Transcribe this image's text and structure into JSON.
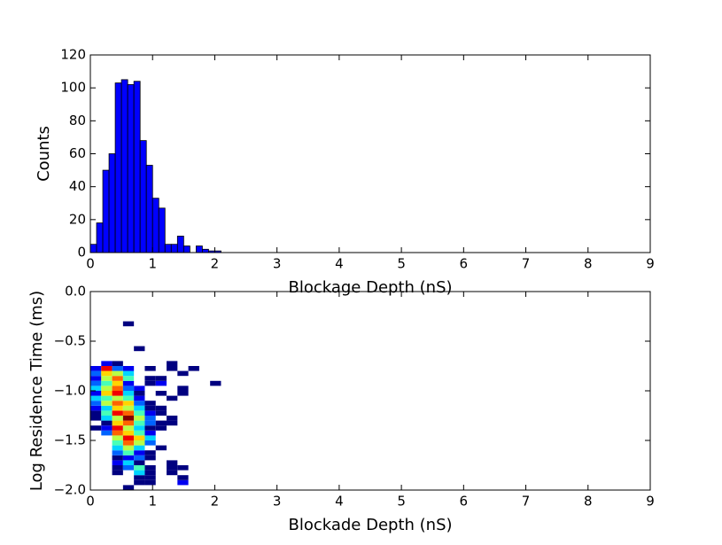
{
  "chart_data": [
    {
      "type": "histogram",
      "xlabel": "Blockage Depth (nS)",
      "ylabel": "Counts",
      "bins": [
        0,
        0.1,
        0.2,
        0.3,
        0.4,
        0.5,
        0.6,
        0.7,
        0.8,
        0.9,
        1.0,
        1.1,
        1.2,
        1.3,
        1.4,
        1.5,
        1.6,
        1.7,
        1.8,
        1.9,
        2.0,
        2.1
      ],
      "values": [
        5,
        18,
        50,
        60,
        103,
        105,
        102,
        104,
        68,
        53,
        33,
        27,
        5,
        5,
        10,
        4,
        0,
        4,
        2,
        1,
        1
      ],
      "color": "#0000ff",
      "xlim": [
        0,
        9
      ],
      "xticks": [
        0,
        1,
        2,
        3,
        4,
        5,
        6,
        7,
        8,
        9
      ],
      "ylim": [
        0,
        120
      ],
      "yticks": [
        0,
        20,
        40,
        60,
        80,
        100,
        120
      ]
    },
    {
      "type": "hist2d",
      "xlabel": "Blockade Depth (nS)",
      "ylabel": "Log Residence Time (ms)",
      "colormap": "jet",
      "xbins": [
        0,
        0.175,
        0.35,
        0.525,
        0.7,
        0.875,
        1.05,
        1.225,
        1.4,
        1.575,
        1.75,
        1.925,
        2.1
      ],
      "ybins": [
        -2.0,
        -1.95,
        -1.9,
        -1.85,
        -1.8,
        -1.75,
        -1.7,
        -1.65,
        -1.6,
        -1.55,
        -1.5,
        -1.45,
        -1.4,
        -1.35,
        -1.3,
        -1.25,
        -1.2,
        -1.15,
        -1.1,
        -1.05,
        -1.0,
        -0.95,
        -0.9,
        -0.85,
        -0.8,
        -0.75,
        -0.7,
        -0.65,
        -0.6,
        -0.55,
        -0.5,
        -0.45,
        -0.4,
        -0.35,
        -0.3
      ],
      "counts": [
        [
          0,
          0,
          0,
          1,
          0,
          0,
          0,
          0,
          0,
          0,
          0,
          0
        ],
        [
          0,
          0,
          0,
          0,
          1,
          1,
          0,
          0,
          2,
          0,
          0,
          0
        ],
        [
          0,
          0,
          0,
          0,
          1,
          1,
          0,
          0,
          1,
          0,
          0,
          0
        ],
        [
          0,
          0,
          1,
          0,
          4,
          1,
          0,
          1,
          0,
          0,
          0,
          0
        ],
        [
          0,
          0,
          1,
          3,
          5,
          1,
          0,
          1,
          1,
          0,
          0,
          0
        ],
        [
          0,
          0,
          2,
          4,
          1,
          0,
          0,
          1,
          0,
          0,
          0,
          0
        ],
        [
          0,
          0,
          1,
          2,
          3,
          1,
          0,
          0,
          0,
          0,
          0,
          0
        ],
        [
          0,
          0,
          3,
          5,
          2,
          1,
          0,
          0,
          0,
          0,
          0,
          0
        ],
        [
          0,
          0,
          4,
          6,
          4,
          0,
          1,
          0,
          0,
          0,
          0,
          0
        ],
        [
          0,
          0,
          5,
          8,
          6,
          3,
          0,
          0,
          0,
          0,
          0,
          0
        ],
        [
          0,
          0,
          6,
          9,
          7,
          4,
          0,
          0,
          0,
          0,
          0,
          0
        ],
        [
          0,
          3,
          8,
          7,
          5,
          2,
          0,
          0,
          0,
          0,
          0,
          0
        ],
        [
          1,
          2,
          9,
          6,
          4,
          1,
          1,
          0,
          0,
          0,
          0,
          0
        ],
        [
          0,
          1,
          7,
          8,
          5,
          3,
          1,
          1,
          0,
          0,
          0,
          0
        ],
        [
          1,
          4,
          6,
          10,
          6,
          3,
          0,
          1,
          0,
          0,
          0,
          0
        ],
        [
          1,
          5,
          9,
          8,
          5,
          2,
          1,
          0,
          0,
          0,
          0,
          0
        ],
        [
          2,
          4,
          7,
          6,
          4,
          1,
          1,
          0,
          0,
          0,
          0,
          0
        ],
        [
          3,
          6,
          8,
          7,
          3,
          1,
          0,
          0,
          0,
          0,
          0,
          0
        ],
        [
          4,
          5,
          6,
          5,
          2,
          0,
          0,
          1,
          0,
          0,
          0,
          0
        ],
        [
          2,
          7,
          9,
          4,
          1,
          0,
          1,
          0,
          1,
          0,
          0,
          0
        ],
        [
          4,
          6,
          8,
          3,
          2,
          0,
          0,
          0,
          1,
          0,
          0,
          0
        ],
        [
          3,
          5,
          7,
          2,
          0,
          1,
          2,
          0,
          0,
          0,
          0,
          1
        ],
        [
          2,
          6,
          8,
          5,
          0,
          1,
          1,
          0,
          0,
          0,
          0,
          0
        ],
        [
          3,
          7,
          6,
          4,
          0,
          0,
          0,
          0,
          1,
          0,
          0,
          0
        ],
        [
          2,
          9,
          3,
          2,
          0,
          1,
          0,
          1,
          0,
          1,
          0,
          0
        ],
        [
          0,
          2,
          1,
          0,
          0,
          0,
          0,
          1,
          0,
          0,
          0,
          0
        ],
        [
          0,
          0,
          0,
          0,
          0,
          0,
          0,
          0,
          0,
          0,
          0,
          0
        ],
        [
          0,
          0,
          0,
          0,
          0,
          0,
          0,
          0,
          0,
          0,
          0,
          0
        ],
        [
          0,
          0,
          0,
          0,
          1,
          0,
          0,
          0,
          0,
          0,
          0,
          0
        ],
        [
          0,
          0,
          0,
          0,
          0,
          0,
          0,
          0,
          0,
          0,
          0,
          0
        ],
        [
          0,
          0,
          0,
          0,
          0,
          0,
          0,
          0,
          0,
          0,
          0,
          0
        ],
        [
          0,
          0,
          0,
          0,
          0,
          0,
          0,
          0,
          0,
          0,
          0,
          0
        ],
        [
          0,
          0,
          0,
          0,
          0,
          0,
          0,
          0,
          0,
          0,
          0,
          0
        ],
        [
          0,
          0,
          0,
          1,
          0,
          0,
          0,
          0,
          0,
          0,
          0,
          0
        ]
      ],
      "xlim": [
        0,
        9
      ],
      "xticks": [
        0,
        1,
        2,
        3,
        4,
        5,
        6,
        7,
        8,
        9
      ],
      "ylim": [
        -2,
        0
      ],
      "yticks": [
        {
          "value": -2.0,
          "label": "−2.0"
        },
        {
          "value": -1.5,
          "label": "−1.5"
        },
        {
          "value": -1.0,
          "label": "−1.0"
        },
        {
          "value": -0.5,
          "label": "−0.5"
        },
        {
          "value": 0.0,
          "label": "0.0"
        }
      ]
    }
  ]
}
